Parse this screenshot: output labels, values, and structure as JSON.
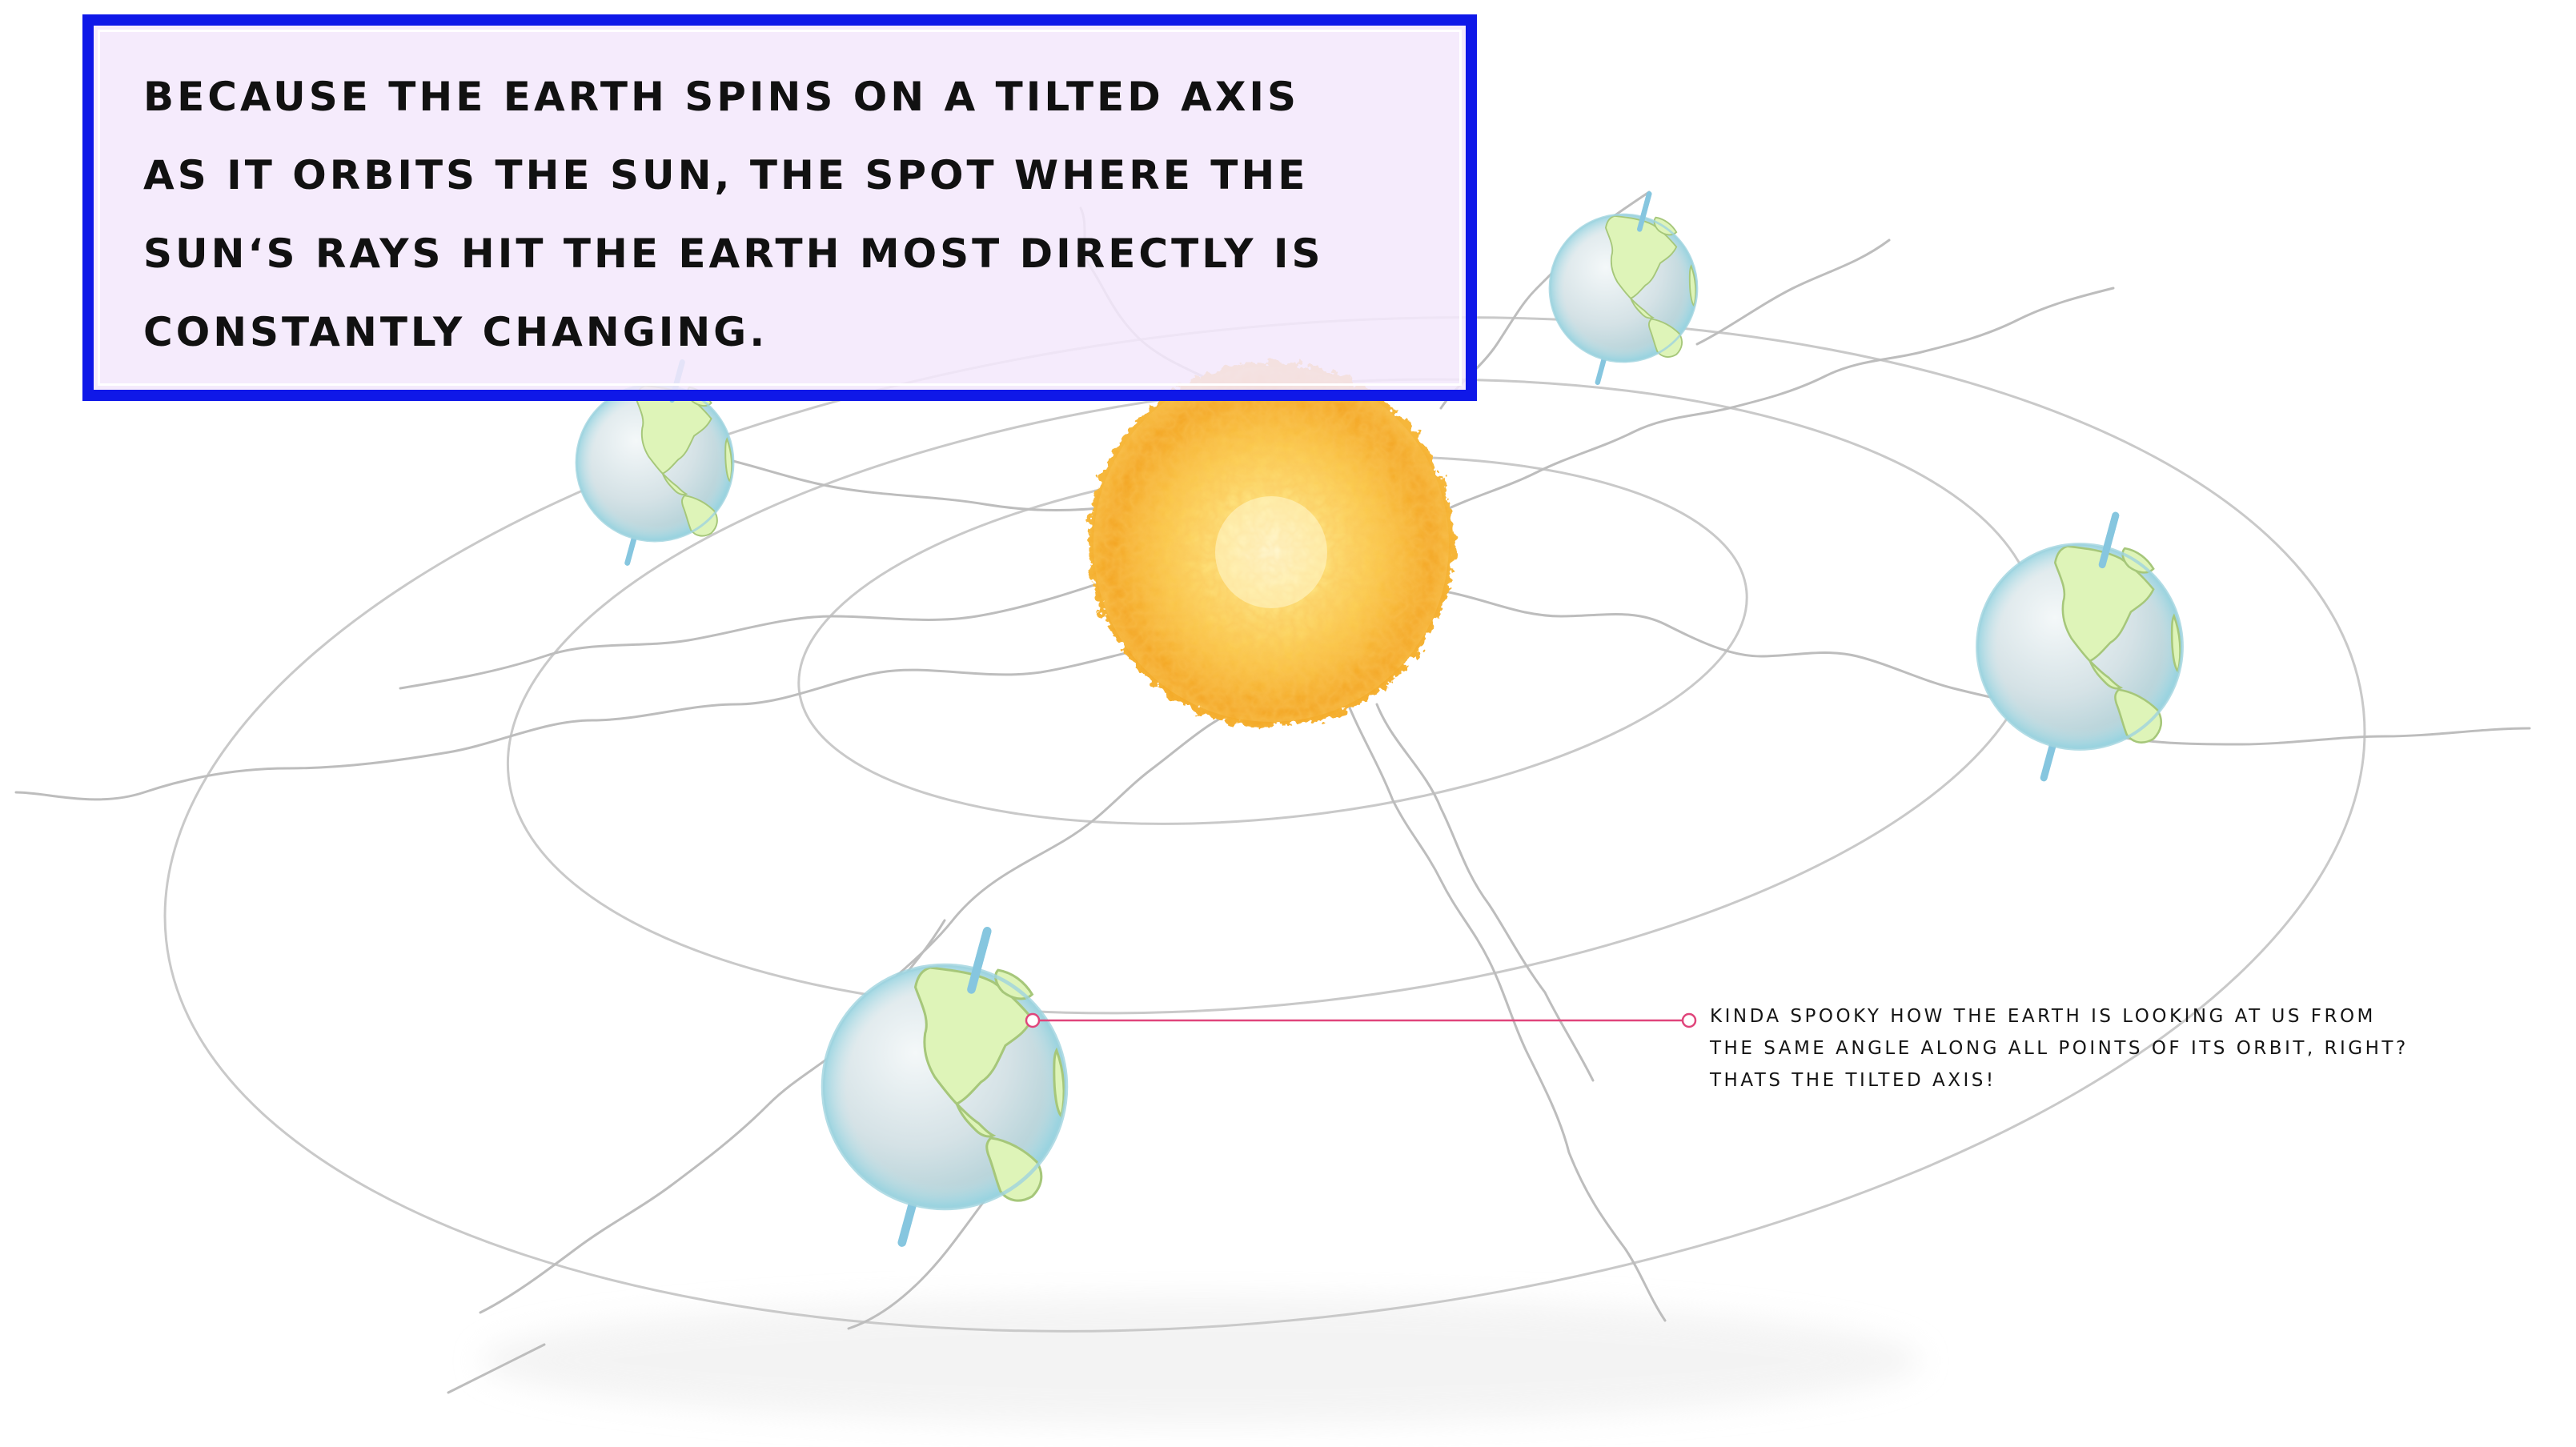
{
  "diagram": {
    "main_text": "Because the Earth spins on a tilted axis\nas it orbits the sun, the spot where the\nsun‘s rays hit the Earth  most directly is\nconstantly changing.",
    "callout_text": "Kinda spOOky how the Earth is looking at us from\nthe same angle along all points of its orbit, right?\nThats the tilted axis!",
    "colors": {
      "box_border": "#0f18e8",
      "box_fill": "#f3e8fc",
      "orbit_lines": "#c9c9c9",
      "sun_core": "#fff2a8",
      "sun_outer": "#f5a623",
      "earth_ocean": "#cfe8ec",
      "earth_land": "#d9f2b0",
      "axis": "#7ec8e3",
      "callout_line": "#e0457b"
    },
    "objects": [
      "sun",
      "earth",
      "earth",
      "earth",
      "earth",
      "orbit-ring",
      "orbit-ring",
      "orbit-ring"
    ]
  }
}
